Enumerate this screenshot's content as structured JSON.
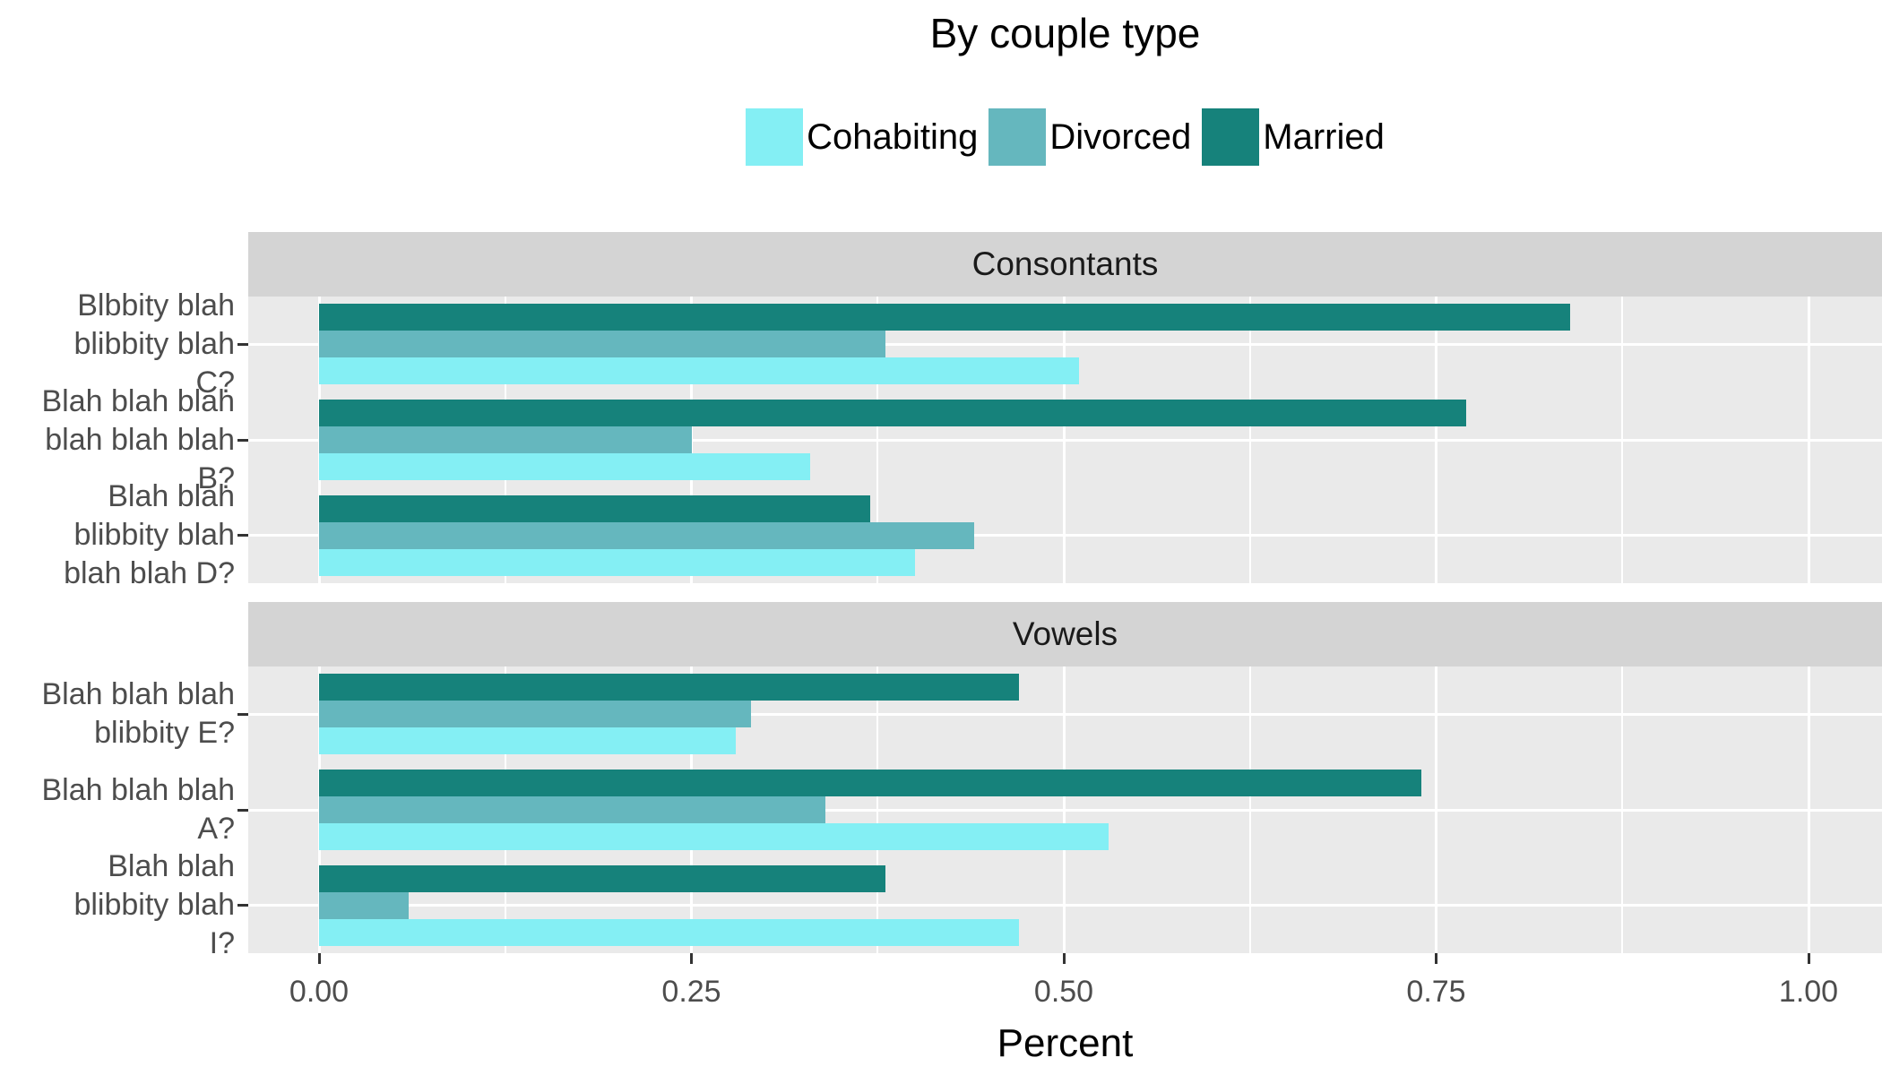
{
  "title": "By couple type",
  "chart_data": {
    "type": "bar",
    "orientation": "horizontal",
    "title": "By couple type",
    "xlabel": "Percent",
    "xlim": [
      -0.05,
      1.05
    ],
    "grid": "on",
    "x_ticks": {
      "values": [
        0,
        0.25,
        0.5,
        0.75,
        1.0
      ],
      "labels": [
        "0.00",
        "0.25",
        "0.50",
        "0.75",
        "1.00"
      ]
    },
    "legend": {
      "position": "top",
      "items": [
        {
          "label": "Cohabiting",
          "color": "#84EFF4"
        },
        {
          "label": "Divorced",
          "color": "#65B7BE"
        },
        {
          "label": "Married",
          "color": "#16827B"
        }
      ]
    },
    "series_order_top_to_bottom": [
      "Married",
      "Divorced",
      "Cohabiting"
    ],
    "facets": [
      {
        "label": "Consontants",
        "groups": [
          {
            "label": "Blbbity blah blibbity blah C?",
            "label_lines": [
              "Blbbity blah",
              "blibbity blah",
              "C?"
            ],
            "values": {
              "Cohabiting": 0.51,
              "Divorced": 0.38,
              "Married": 0.84
            }
          },
          {
            "label": "Blah blah blah blah blah blah B?",
            "label_lines": [
              "Blah blah blah",
              "blah blah blah",
              "B?"
            ],
            "values": {
              "Cohabiting": 0.33,
              "Divorced": 0.25,
              "Married": 0.77
            }
          },
          {
            "label": "Blah blah blibbity blah blah blah D?",
            "label_lines": [
              "Blah blah",
              "blibbity blah",
              "blah blah D?"
            ],
            "values": {
              "Cohabiting": 0.4,
              "Divorced": 0.44,
              "Married": 0.37
            }
          }
        ]
      },
      {
        "label": "Vowels",
        "groups": [
          {
            "label": "Blah blah blah blibbity E?",
            "label_lines": [
              "Blah blah blah",
              "blibbity E?"
            ],
            "values": {
              "Cohabiting": 0.28,
              "Divorced": 0.29,
              "Married": 0.47
            }
          },
          {
            "label": "Blah blah blah A?",
            "label_lines": [
              "Blah blah blah",
              "A?"
            ],
            "values": {
              "Cohabiting": 0.53,
              "Divorced": 0.34,
              "Married": 0.74
            }
          },
          {
            "label": "Blah blah blibbity blah I?",
            "label_lines": [
              "Blah blah",
              "blibbity blah",
              "I?"
            ],
            "values": {
              "Cohabiting": 0.47,
              "Divorced": 0.06,
              "Married": 0.38
            }
          }
        ]
      }
    ],
    "colors": {
      "panel_background": "#EAEAEA",
      "strip_background": "#D4D4D4",
      "gridline": "#FFFFFF",
      "tick_mark": "#333333",
      "axis_text": "#4D4D4D"
    }
  }
}
